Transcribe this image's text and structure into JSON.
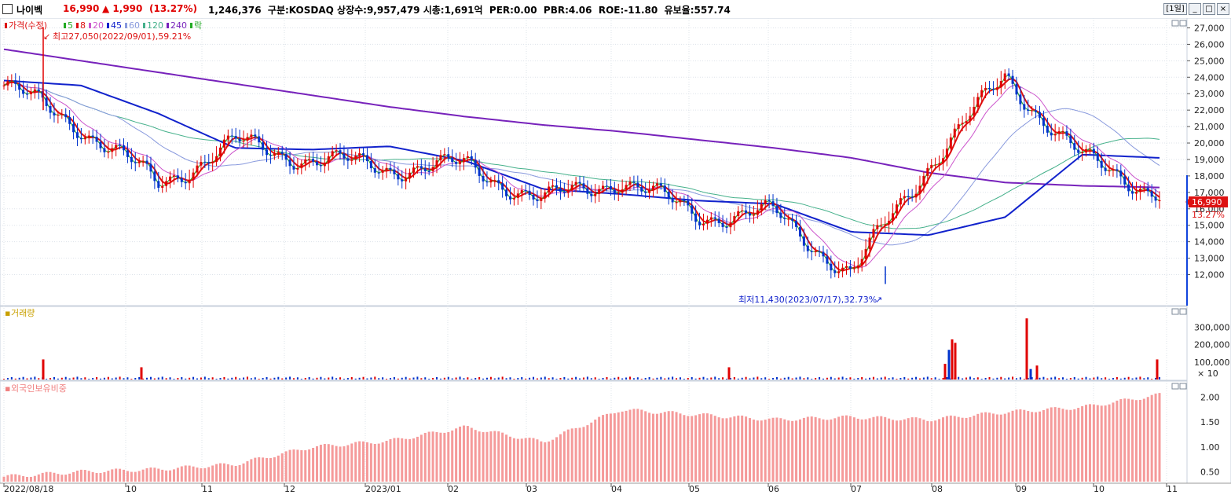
{
  "header": {
    "stock_name": "나이벡",
    "price": "16,990",
    "change": "▲ 1,990",
    "change_pct": "(13.27%)",
    "info": "1,246,376  구분:KOSDAQ 상장수:9,957,479 시총:1,691억  PER:0.00  PBR:4.06  ROE:-11.80  유보율:557.74",
    "period": "[1일]"
  },
  "colors": {
    "up": "#e00000",
    "down": "#0033cc",
    "ma5": "#22aa22",
    "ma8": "#dd1111",
    "ma20": "#cc55cc",
    "ma45": "#1122cc",
    "ma60": "#8899dd",
    "ma120": "#44b08a",
    "ma240": "#7722bb",
    "foreign_bar": "#f59a9a"
  },
  "price_panel": {
    "legend": [
      {
        "text": "가격(수정)",
        "color": "#dd1111"
      },
      {
        "text": "5",
        "color": "#22aa22"
      },
      {
        "text": "8",
        "color": "#dd1111"
      },
      {
        "text": "20",
        "color": "#cc55cc"
      },
      {
        "text": "45",
        "color": "#1122cc"
      },
      {
        "text": "60",
        "color": "#8899dd"
      },
      {
        "text": "120",
        "color": "#44b08a"
      },
      {
        "text": "240",
        "color": "#7722bb"
      },
      {
        "text": "락",
        "color": "#22aa22"
      }
    ],
    "high_label": "최고27,050(2022/09/01),59.21%",
    "low_label": "최저11,430(2023/07/17),32.73%",
    "last_price_label": "16,990",
    "last_pct_label": "13.27%",
    "y_ticks": [
      "27,000",
      "26,000",
      "25,000",
      "24,000",
      "23,000",
      "22,000",
      "21,000",
      "20,000",
      "19,000",
      "18,000",
      "17,000",
      "16,000",
      "15,000",
      "14,000",
      "13,000",
      "12,000"
    ]
  },
  "volume_panel": {
    "legend": "거래량",
    "y_ticks": [
      "300,000",
      "200,000",
      "100,000"
    ],
    "unit": "× 10"
  },
  "foreign_panel": {
    "legend": "외국인보유비중",
    "y_ticks": [
      "2.00",
      "1.50",
      "1.00",
      "0.50"
    ]
  },
  "x_axis": [
    "2022/08/18",
    "10",
    "11",
    "12",
    "2023/01",
    "02",
    "03",
    "04",
    "05",
    "06",
    "07",
    "08",
    "09",
    "10",
    "11"
  ],
  "chart_data": [
    {
      "type": "line",
      "title": "",
      "x": [
        "2022/08",
        "2022/09",
        "2022/10",
        "2022/11",
        "2022/12",
        "2023/01",
        "2023/02",
        "2023/03",
        "2023/04",
        "2023/05",
        "2023/06",
        "2023/07",
        "2023/08",
        "2023/09",
        "2023/10",
        "2023/11"
      ],
      "series": [
        {
          "name": "가격(수정)",
          "values": [
            23500,
            21000,
            17500,
            20000,
            19000,
            18500,
            18600,
            16500,
            17800,
            15600,
            15700,
            12000,
            18700,
            24000,
            19000,
            16990
          ]
        },
        {
          "name": "45",
          "values": [
            23800,
            23500,
            21800,
            19700,
            19600,
            19800,
            18900,
            17200,
            16900,
            16500,
            16300,
            14600,
            14400,
            15500,
            19300,
            19100
          ]
        },
        {
          "name": "240",
          "values": [
            25700,
            25000,
            24300,
            23600,
            22900,
            22200,
            21600,
            21100,
            20700,
            20200,
            19700,
            19100,
            18200,
            17600,
            17400,
            17300
          ]
        }
      ],
      "ylim": [
        11000,
        28000
      ],
      "high": {
        "value": 27050,
        "date": "2022/09/01",
        "pct": "59.21%"
      },
      "low": {
        "value": 11430,
        "date": "2023/07/17",
        "pct": "32.73%"
      }
    },
    {
      "type": "bar",
      "title": "거래량",
      "peaks": [
        {
          "x": "2022/09/01",
          "value": 115000
        },
        {
          "x": "2022/10",
          "value": 70000
        },
        {
          "x": "2023/05",
          "value": 70000
        },
        {
          "x": "2023/08",
          "value": 230000
        },
        {
          "x": "2023/09",
          "value": 350000
        },
        {
          "x": "2023/11",
          "value": 115000
        }
      ],
      "unit": "× 10"
    },
    {
      "type": "bar",
      "title": "외국인보유비중",
      "x": [
        "2022/08",
        "2022/09",
        "2022/10",
        "2022/11",
        "2022/12",
        "2023/01",
        "2023/02",
        "2023/03",
        "2023/04",
        "2023/05",
        "2023/06",
        "2023/07",
        "2023/08",
        "2023/09",
        "2023/10",
        "2023/11"
      ],
      "values": [
        0.4,
        0.5,
        0.55,
        0.65,
        1.0,
        1.12,
        1.4,
        1.1,
        1.75,
        1.65,
        1.55,
        1.6,
        1.55,
        1.7,
        1.8,
        2.05
      ],
      "ylim": [
        0.25,
        2.2
      ]
    }
  ]
}
